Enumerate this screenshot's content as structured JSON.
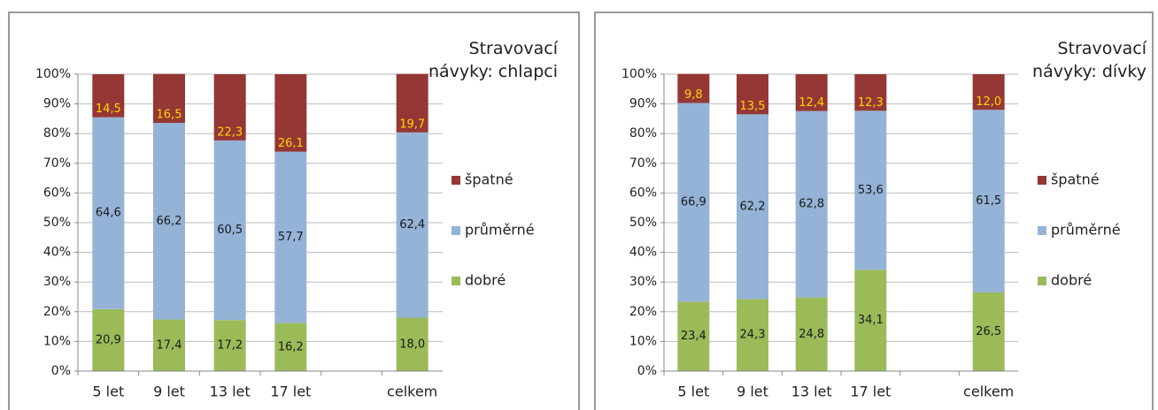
{
  "chart_data": [
    {
      "type": "stacked-bar",
      "title": "Stravovací návyky: chlapci",
      "categories": [
        "5 let",
        "9 let",
        "13 let",
        "17 let",
        null,
        "celkem"
      ],
      "series": [
        {
          "name": "dobré",
          "color": "#9bbb59",
          "label_color": "#1a1a1a",
          "values": [
            20.9,
            17.4,
            17.2,
            16.2,
            null,
            18.0
          ],
          "value_labels": [
            "20,9",
            "17,4",
            "17,2",
            "16,2",
            null,
            "18,0"
          ]
        },
        {
          "name": "průměrné",
          "color": "#95b3d7",
          "label_color": "#1a1a1a",
          "values": [
            64.6,
            66.2,
            60.5,
            57.7,
            null,
            62.4
          ],
          "value_labels": [
            "64,6",
            "66,2",
            "60,5",
            "57,7",
            null,
            "62,4"
          ]
        },
        {
          "name": "špatné",
          "color": "#953735",
          "label_color": "#ffd700",
          "values": [
            14.5,
            16.5,
            22.3,
            26.1,
            null,
            19.7
          ],
          "value_labels": [
            "14,5",
            "16,5",
            "22,3",
            "26,1",
            null,
            "19,7"
          ]
        }
      ],
      "ylim": [
        0,
        100
      ],
      "yticks": [
        {
          "value": 0,
          "label": "0%"
        },
        {
          "value": 10,
          "label": "10%"
        },
        {
          "value": 20,
          "label": "20%"
        },
        {
          "value": 30,
          "label": "30%"
        },
        {
          "value": 40,
          "label": "40%"
        },
        {
          "value": 50,
          "label": "50%"
        },
        {
          "value": 60,
          "label": "60%"
        },
        {
          "value": 70,
          "label": "70%"
        },
        {
          "value": 80,
          "label": "80%"
        },
        {
          "value": 90,
          "label": "90%"
        },
        {
          "value": 100,
          "label": "100%"
        }
      ],
      "grid": true,
      "legend": "right"
    },
    {
      "type": "stacked-bar",
      "title": "Stravovací návyky: dívky",
      "categories": [
        "5 let",
        "9 let",
        "13 let",
        "17 let",
        null,
        "celkem"
      ],
      "series": [
        {
          "name": "dobré",
          "color": "#9bbb59",
          "label_color": "#1a1a1a",
          "values": [
            23.4,
            24.3,
            24.8,
            34.1,
            null,
            26.5
          ],
          "value_labels": [
            "23,4",
            "24,3",
            "24,8",
            "34,1",
            null,
            "26,5"
          ]
        },
        {
          "name": "průměrné",
          "color": "#95b3d7",
          "label_color": "#1a1a1a",
          "values": [
            66.9,
            62.2,
            62.8,
            53.6,
            null,
            61.5
          ],
          "value_labels": [
            "66,9",
            "62,2",
            "62,8",
            "53,6",
            null,
            "61,5"
          ]
        },
        {
          "name": "špatné",
          "color": "#953735",
          "label_color": "#ffd700",
          "values": [
            9.8,
            13.5,
            12.4,
            12.3,
            null,
            12.0
          ],
          "value_labels": [
            "9,8",
            "13,5",
            "12,4",
            "12,3",
            null,
            "12,0"
          ]
        }
      ],
      "ylim": [
        0,
        100
      ],
      "yticks": [
        {
          "value": 0,
          "label": "0%"
        },
        {
          "value": 10,
          "label": "10%"
        },
        {
          "value": 20,
          "label": "20%"
        },
        {
          "value": 30,
          "label": "30%"
        },
        {
          "value": 40,
          "label": "40%"
        },
        {
          "value": 50,
          "label": "50%"
        },
        {
          "value": 60,
          "label": "60%"
        },
        {
          "value": 70,
          "label": "70%"
        },
        {
          "value": 80,
          "label": "80%"
        },
        {
          "value": 90,
          "label": "90%"
        },
        {
          "value": 100,
          "label": "100%"
        }
      ],
      "grid": true,
      "legend": "right"
    }
  ]
}
